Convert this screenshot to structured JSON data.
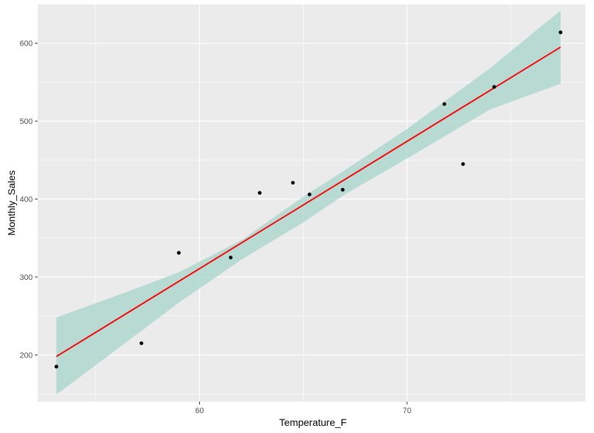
{
  "chart_data": {
    "type": "scatter",
    "title": "",
    "xlabel": "Temperature_F",
    "ylabel": "Monthly_Sales",
    "xlim": [
      52.2,
      78.6
    ],
    "ylim": [
      140,
      650
    ],
    "x_ticks": [
      60,
      70
    ],
    "y_ticks": [
      200,
      300,
      400,
      500,
      600
    ],
    "grid": true,
    "legend": "none",
    "points": [
      {
        "x": 53.1,
        "y": 185
      },
      {
        "x": 57.2,
        "y": 215
      },
      {
        "x": 59.0,
        "y": 331
      },
      {
        "x": 61.5,
        "y": 325
      },
      {
        "x": 62.9,
        "y": 408
      },
      {
        "x": 64.5,
        "y": 421
      },
      {
        "x": 65.3,
        "y": 406
      },
      {
        "x": 66.9,
        "y": 412
      },
      {
        "x": 71.8,
        "y": 522
      },
      {
        "x": 72.7,
        "y": 445
      },
      {
        "x": 74.2,
        "y": 544
      },
      {
        "x": 77.4,
        "y": 614
      }
    ],
    "fit_line": [
      {
        "x": 53.1,
        "y": 198
      },
      {
        "x": 77.4,
        "y": 595
      }
    ],
    "confidence_band": {
      "upper": [
        {
          "x": 53.1,
          "y": 248
        },
        {
          "x": 56,
          "y": 276
        },
        {
          "x": 59,
          "y": 306
        },
        {
          "x": 62,
          "y": 347
        },
        {
          "x": 65,
          "y": 403
        },
        {
          "x": 67,
          "y": 437
        },
        {
          "x": 70,
          "y": 490
        },
        {
          "x": 74,
          "y": 568
        },
        {
          "x": 77.4,
          "y": 642
        }
      ],
      "lower": [
        {
          "x": 53.1,
          "y": 149
        },
        {
          "x": 56,
          "y": 207
        },
        {
          "x": 59,
          "y": 267
        },
        {
          "x": 62,
          "y": 322
        },
        {
          "x": 65,
          "y": 370
        },
        {
          "x": 67,
          "y": 406
        },
        {
          "x": 70,
          "y": 452
        },
        {
          "x": 74,
          "y": 515
        },
        {
          "x": 77.4,
          "y": 548
        }
      ]
    },
    "colors": {
      "panel": "#ebebeb",
      "grid": "#ffffff",
      "points": "#000000",
      "fit_line": "#ff0000",
      "band": "#a5d5cb",
      "tick_text": "#4d4d4d",
      "tick_mark": "#333333"
    }
  }
}
